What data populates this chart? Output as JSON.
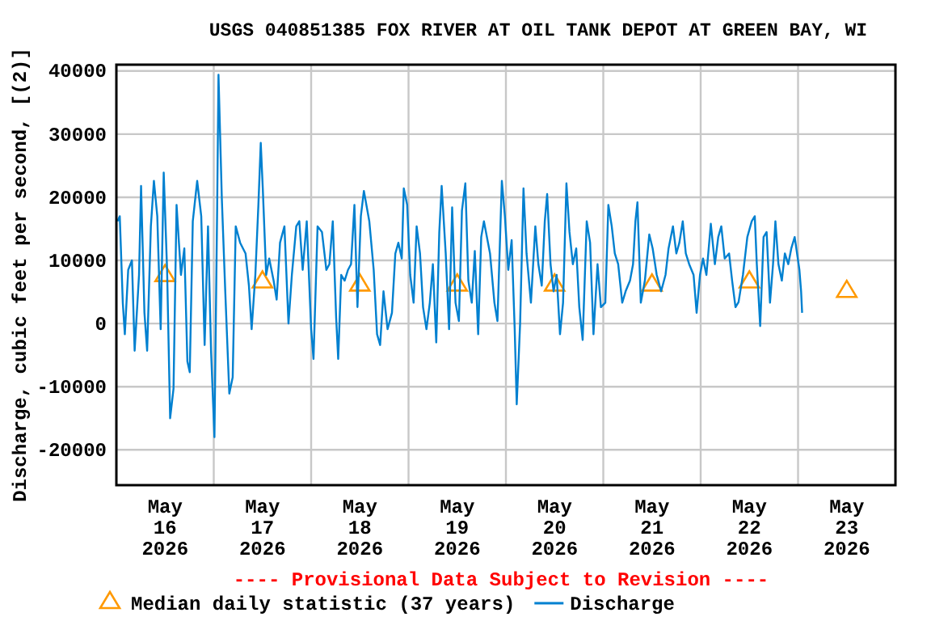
{
  "chart_data": {
    "type": "line",
    "title": "USGS 040851385 FOX RIVER AT OIL TANK DEPOT AT GREEN BAY, WI",
    "ylabel": "Discharge, cubic feet per second, [(2)]",
    "annotations": [
      "---- Provisional Data Subject to Revision ----"
    ],
    "xlim": [
      "2026-05-16",
      "2026-05-24"
    ],
    "xticks": [
      {
        "value": "2026-05-16T12:00",
        "label": "May\n16\n2026"
      },
      {
        "value": "2026-05-17T12:00",
        "label": "May\n17\n2026"
      },
      {
        "value": "2026-05-18T12:00",
        "label": "May\n18\n2026"
      },
      {
        "value": "2026-05-19T12:00",
        "label": "May\n19\n2026"
      },
      {
        "value": "2026-05-20T12:00",
        "label": "May\n20\n2026"
      },
      {
        "value": "2026-05-21T12:00",
        "label": "May\n21\n2026"
      },
      {
        "value": "2026-05-22T12:00",
        "label": "May\n22\n2026"
      },
      {
        "value": "2026-05-23T12:00",
        "label": "May\n23\n2026"
      },
      {
        "value": "2026-05-17",
        "label": null
      },
      {
        "value": "2026-05-18",
        "label": null
      },
      {
        "value": "2026-05-19",
        "label": null
      },
      {
        "value": "2026-05-20",
        "label": null
      },
      {
        "value": "2026-05-21",
        "label": null
      },
      {
        "value": "2026-05-22",
        "label": null
      },
      {
        "value": "2026-05-23",
        "label": null
      }
    ],
    "ylim": [
      -25600,
      41000
    ],
    "yticks": [
      -20000,
      -10000,
      0,
      10000,
      20000,
      30000,
      40000
    ],
    "grid": true,
    "legend": "bottom",
    "series": [
      {
        "name": "Median daily statistic (37 years)",
        "type": "scatter",
        "marker": "triangle",
        "color": "#ff9900",
        "x": [
          "2026-05-16T12:00",
          "2026-05-17T12:00",
          "2026-05-18T12:00",
          "2026-05-19T12:00",
          "2026-05-20T12:00",
          "2026-05-21T12:00",
          "2026-05-22T12:00",
          "2026-05-23T12:00"
        ],
        "values": [
          8000,
          7000,
          6500,
          6500,
          6500,
          6500,
          7000,
          5500
        ]
      },
      {
        "name": "Discharge",
        "type": "line",
        "color": "#0080d0",
        "x": [
          "2026-05-16T00:15",
          "2026-05-16T00:50",
          "2026-05-16T01:35",
          "2026-05-16T02:05",
          "2026-05-16T02:55",
          "2026-05-16T03:50",
          "2026-05-16T04:30",
          "2026-05-16T05:35",
          "2026-05-16T06:05",
          "2026-05-16T06:55",
          "2026-05-16T07:35",
          "2026-05-16T08:30",
          "2026-05-16T09:15",
          "2026-05-16T10:05",
          "2026-05-16T10:55",
          "2026-05-16T11:40",
          "2026-05-16T12:30",
          "2026-05-16T13:15",
          "2026-05-16T14:05",
          "2026-05-16T14:50",
          "2026-05-16T15:55",
          "2026-05-16T16:45",
          "2026-05-16T17:30",
          "2026-05-16T18:05",
          "2026-05-16T18:50",
          "2026-05-16T19:55",
          "2026-05-16T20:55",
          "2026-05-16T21:45",
          "2026-05-16T22:35",
          "2026-05-16T23:20",
          "2026-05-17T00:10",
          "2026-05-17T00:50",
          "2026-05-17T01:10",
          "2026-05-17T02:00",
          "2026-05-17T02:50",
          "2026-05-17T03:50",
          "2026-05-17T04:40",
          "2026-05-17T05:25",
          "2026-05-17T06:30",
          "2026-05-17T07:50",
          "2026-05-17T08:40",
          "2026-05-17T09:20",
          "2026-05-17T10:15",
          "2026-05-17T11:00",
          "2026-05-17T11:35",
          "2026-05-17T12:05",
          "2026-05-17T12:55",
          "2026-05-17T13:40",
          "2026-05-17T14:45",
          "2026-05-17T15:30",
          "2026-05-17T16:20",
          "2026-05-17T17:25",
          "2026-05-17T18:25",
          "2026-05-17T19:15",
          "2026-05-17T20:20",
          "2026-05-17T21:05",
          "2026-05-17T21:55",
          "2026-05-17T22:55",
          "2026-05-18T00:00",
          "2026-05-18T00:35",
          "2026-05-18T01:35",
          "2026-05-18T02:40",
          "2026-05-18T03:45",
          "2026-05-18T04:30",
          "2026-05-18T05:20",
          "2026-05-18T06:10",
          "2026-05-18T06:40",
          "2026-05-18T07:25",
          "2026-05-18T08:15",
          "2026-05-18T09:05",
          "2026-05-18T09:50",
          "2026-05-18T10:40",
          "2026-05-18T11:25",
          "2026-05-18T12:15",
          "2026-05-18T13:00",
          "2026-05-18T14:20",
          "2026-05-18T15:25",
          "2026-05-18T16:15",
          "2026-05-18T17:00",
          "2026-05-18T17:50",
          "2026-05-18T18:50",
          "2026-05-18T19:55",
          "2026-05-18T20:45",
          "2026-05-18T21:30",
          "2026-05-18T22:20",
          "2026-05-18T22:50",
          "2026-05-18T23:40",
          "2026-05-19T00:25",
          "2026-05-19T01:15",
          "2026-05-19T02:00",
          "2026-05-19T02:50",
          "2026-05-19T03:35",
          "2026-05-19T04:25",
          "2026-05-19T05:15",
          "2026-05-19T06:00",
          "2026-05-19T06:50",
          "2026-05-19T07:35",
          "2026-05-19T08:10",
          "2026-05-19T09:10",
          "2026-05-19T10:00",
          "2026-05-19T10:45",
          "2026-05-19T11:35",
          "2026-05-19T12:25",
          "2026-05-19T13:10",
          "2026-05-19T14:00",
          "2026-05-19T14:45",
          "2026-05-19T15:35",
          "2026-05-19T16:20",
          "2026-05-19T17:10",
          "2026-05-19T17:55",
          "2026-05-19T18:35",
          "2026-05-19T20:05",
          "2026-05-19T21:10",
          "2026-05-19T21:55",
          "2026-05-19T23:00",
          "2026-05-19T23:45",
          "2026-05-20T00:35",
          "2026-05-20T01:25",
          "2026-05-20T02:10",
          "2026-05-20T02:40",
          "2026-05-20T03:30",
          "2026-05-20T04:20",
          "2026-05-20T05:05",
          "2026-05-20T06:10",
          "2026-05-20T07:15",
          "2026-05-20T08:00",
          "2026-05-20T08:50",
          "2026-05-20T09:35",
          "2026-05-20T10:10",
          "2026-05-20T11:00",
          "2026-05-20T11:45",
          "2026-05-20T12:30",
          "2026-05-20T13:20",
          "2026-05-20T14:05",
          "2026-05-20T14:55",
          "2026-05-20T15:40",
          "2026-05-20T16:30",
          "2026-05-20T17:20",
          "2026-05-20T18:05",
          "2026-05-20T18:55",
          "2026-05-20T19:55",
          "2026-05-20T20:45",
          "2026-05-20T21:35",
          "2026-05-20T22:35",
          "2026-05-20T23:25",
          "2026-05-21T00:30",
          "2026-05-21T01:15",
          "2026-05-21T02:05",
          "2026-05-21T02:50",
          "2026-05-21T03:40",
          "2026-05-21T04:40",
          "2026-05-21T05:30",
          "2026-05-21T06:35",
          "2026-05-21T07:20",
          "2026-05-21T07:55",
          "2026-05-21T08:25",
          "2026-05-21T09:15",
          "2026-05-21T10:15",
          "2026-05-21T11:20",
          "2026-05-21T12:10",
          "2026-05-21T13:10",
          "2026-05-21T14:15",
          "2026-05-21T15:20",
          "2026-05-21T16:05",
          "2026-05-21T17:10",
          "2026-05-21T18:00",
          "2026-05-21T18:45",
          "2026-05-21T19:35",
          "2026-05-21T20:20",
          "2026-05-21T21:10",
          "2026-05-21T22:15",
          "2026-05-21T23:00",
          "2026-05-21T23:50",
          "2026-05-22T00:35",
          "2026-05-22T01:25",
          "2026-05-22T02:30",
          "2026-05-22T03:30",
          "2026-05-22T04:20",
          "2026-05-22T05:05",
          "2026-05-22T05:55",
          "2026-05-22T07:00",
          "2026-05-22T07:45",
          "2026-05-22T08:35",
          "2026-05-22T09:20",
          "2026-05-22T10:25",
          "2026-05-22T11:30",
          "2026-05-22T12:35",
          "2026-05-22T13:20",
          "2026-05-22T13:50",
          "2026-05-22T14:40",
          "2026-05-22T15:30",
          "2026-05-22T16:15",
          "2026-05-22T17:05",
          "2026-05-22T17:50",
          "2026-05-22T18:25",
          "2026-05-22T19:10",
          "2026-05-22T20:00",
          "2026-05-22T20:45",
          "2026-05-22T21:35",
          "2026-05-22T22:20",
          "2026-05-22T23:10",
          "2026-05-22T23:40",
          "2026-05-23T00:20",
          "2026-05-23T00:45",
          "2026-05-23T01:00"
        ],
        "values": [
          16200,
          17000,
          3300,
          -1700,
          8500,
          10000,
          -4300,
          7700,
          21800,
          1700,
          -4300,
          15400,
          22600,
          17000,
          -900,
          23900,
          8500,
          -15000,
          -10300,
          18800,
          7700,
          11900,
          -6000,
          -7700,
          16200,
          22600,
          17000,
          -3400,
          15400,
          -4300,
          -18000,
          17900,
          39400,
          19600,
          5100,
          -11100,
          -8500,
          15400,
          12800,
          11100,
          6000,
          -900,
          7700,
          18800,
          28600,
          21400,
          7700,
          10300,
          6800,
          3800,
          12800,
          15400,
          0,
          7700,
          15400,
          16200,
          8500,
          16200,
          -900,
          -5600,
          15400,
          14500,
          8500,
          9400,
          16200,
          900,
          -5600,
          7700,
          6800,
          8500,
          9400,
          18800,
          2600,
          17000,
          21000,
          16200,
          8500,
          -1700,
          -3400,
          5100,
          -900,
          1700,
          11100,
          12800,
          10300,
          21400,
          18800,
          7700,
          3300,
          15400,
          11100,
          2600,
          -900,
          3300,
          9400,
          -3000,
          14500,
          21800,
          11100,
          -900,
          18400,
          3300,
          400,
          17900,
          22200,
          6800,
          3300,
          11500,
          -1700,
          13700,
          16200,
          11100,
          3300,
          400,
          22600,
          17000,
          8500,
          13200,
          -900,
          -12800,
          0,
          21400,
          11100,
          3300,
          15400,
          9400,
          6000,
          16200,
          20500,
          9400,
          5100,
          7700,
          -1700,
          3300,
          22200,
          14500,
          9400,
          11900,
          2600,
          -2600,
          16200,
          12800,
          -1700,
          9400,
          2600,
          3300,
          18800,
          15400,
          11100,
          9400,
          3300,
          5100,
          6800,
          9400,
          16200,
          19200,
          3300,
          6800,
          14100,
          11900,
          7700,
          5100,
          7700,
          11900,
          15400,
          11100,
          12800,
          16200,
          11100,
          9400,
          7700,
          1700,
          7700,
          10300,
          7700,
          15800,
          9400,
          13700,
          15400,
          10300,
          11100,
          6800,
          2600,
          3400,
          7700,
          13700,
          16200,
          17000,
          9400,
          -400,
          13700,
          14500,
          3300,
          9400,
          16200,
          9400,
          6800,
          11100,
          9400,
          11900,
          13700,
          11500,
          8500,
          5100,
          1700
        ]
      }
    ]
  }
}
